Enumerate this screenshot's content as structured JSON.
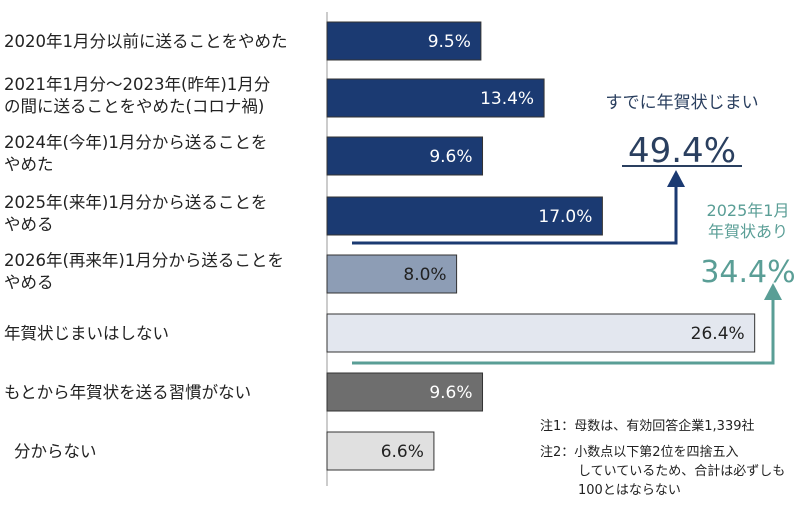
{
  "chart_data": {
    "type": "bar",
    "orientation": "horizontal",
    "unit": "%",
    "categories": [
      [
        "2020年1月分以前に送ることをやめた"
      ],
      [
        "2021年1月分～2023年(昨年)1月分",
        "の間に送ることをやめた(コロナ禍)"
      ],
      [
        "2024年(今年)1月分から送ることを",
        "やめた"
      ],
      [
        "2025年(来年)1月分から送ることを",
        "やめる"
      ],
      [
        "2026年(再来年)1月分から送ることを",
        "やめる"
      ],
      [
        "年賀状じまいはしない"
      ],
      [
        "もとから年賀状を送る習慣がない"
      ],
      [
        "分からない"
      ]
    ],
    "values": [
      9.5,
      13.4,
      9.6,
      17.0,
      8.0,
      26.4,
      9.6,
      6.6
    ],
    "value_labels": [
      "9.5%",
      "13.4%",
      "9.6%",
      "17.0%",
      "8.0%",
      "26.4%",
      "9.6%",
      "6.6%"
    ],
    "bar_colors": [
      "#1b3a72",
      "#1b3a72",
      "#1b3a72",
      "#1b3a72",
      "#8d9db5",
      "#e3e7ef",
      "#6e6e6e",
      "#e0e0e0"
    ],
    "label_colors": [
      "#ffffff",
      "#ffffff",
      "#ffffff",
      "#ffffff",
      "#222222",
      "#222222",
      "#ffffff",
      "#222222"
    ],
    "annotations": {
      "closed": {
        "label": "すでに年賀状じまい",
        "value": "49.4%",
        "color": "#2a3f5f",
        "arrow_color": "#1b3a72"
      },
      "active": {
        "label_lines": [
          "2025年1月",
          "年賀状あり"
        ],
        "value": "34.4%",
        "color": "#5a9e96"
      }
    },
    "notes": [
      "注1：母数は、有効回答企業1,339社",
      "注2：小数点以下第2位を四捨五入",
      "していているため、合計は必ずしも",
      "100とはならない"
    ]
  }
}
